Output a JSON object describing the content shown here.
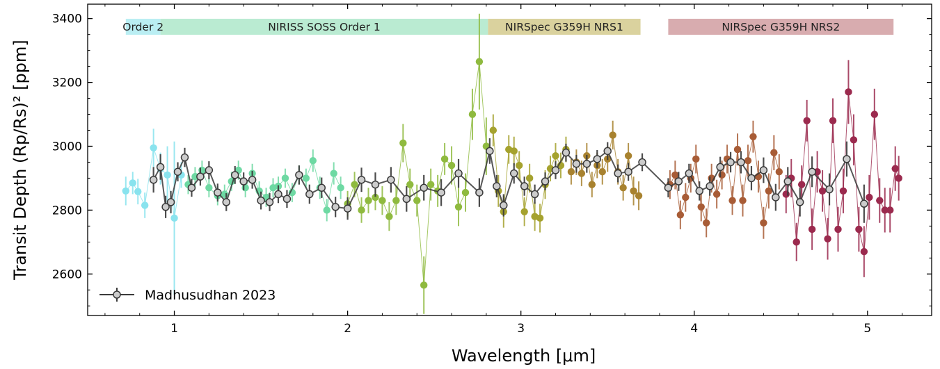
{
  "chart_data": {
    "type": "scatter",
    "title": "",
    "xlabel": "Wavelength [μm]",
    "ylabel": "Transit Depth (Rp/Rs)² [ppm]",
    "xlim": [
      0.5,
      5.37
    ],
    "ylim": [
      2470,
      3445
    ],
    "x_ticks": [
      1,
      2,
      3,
      4,
      5
    ],
    "x_tick_labels": [
      "1",
      "2",
      "3",
      "4",
      "5"
    ],
    "y_ticks": [
      2600,
      2800,
      3000,
      3200,
      3400
    ],
    "y_tick_labels": [
      "2600",
      "2800",
      "3000",
      "3200",
      "3400"
    ],
    "grid": false,
    "legend": {
      "position": "lower-left",
      "entries": [
        "Madhusudhan 2023"
      ]
    },
    "instrument_bands": [
      {
        "label": "Order 2",
        "x_start": 0.72,
        "x_end": 0.92,
        "color": "#b3ecf2"
      },
      {
        "label": "NIRISS SOSS Order 1",
        "x_start": 0.92,
        "x_end": 2.81,
        "color": "#b2e9cd"
      },
      {
        "label": "NIRSpec G359H NRS1",
        "x_start": 2.81,
        "x_end": 3.69,
        "color": "#d6cd94"
      },
      {
        "label": "NIRSpec G359H NRS2",
        "x_start": 3.85,
        "x_end": 5.15,
        "color": "#d4a3a6"
      }
    ],
    "series": [
      {
        "color": "#89e3ee",
        "points": [
          {
            "x": 0.72,
            "y": 2860,
            "err": 45
          },
          {
            "x": 0.76,
            "y": 2885,
            "err": 35
          },
          {
            "x": 0.79,
            "y": 2858,
            "err": 40
          },
          {
            "x": 0.83,
            "y": 2815,
            "err": 40
          },
          {
            "x": 0.88,
            "y": 2995,
            "err": 60
          },
          {
            "x": 0.92,
            "y": 2930,
            "err": 50
          },
          {
            "x": 0.96,
            "y": 2910,
            "err": 90
          },
          {
            "x": 1.0,
            "y": 2775,
            "err": 240
          },
          {
            "x": 1.04,
            "y": 2910,
            "err": 40
          }
        ]
      },
      {
        "color": "#6ed9a3",
        "points": [
          {
            "x": 1.08,
            "y": 2880,
            "err": 30
          },
          {
            "x": 1.12,
            "y": 2905,
            "err": 30
          },
          {
            "x": 1.16,
            "y": 2925,
            "err": 30
          },
          {
            "x": 1.2,
            "y": 2870,
            "err": 30
          },
          {
            "x": 1.25,
            "y": 2845,
            "err": 30
          },
          {
            "x": 1.29,
            "y": 2850,
            "err": 30
          },
          {
            "x": 1.33,
            "y": 2890,
            "err": 30
          },
          {
            "x": 1.37,
            "y": 2925,
            "err": 30
          },
          {
            "x": 1.41,
            "y": 2870,
            "err": 30
          },
          {
            "x": 1.45,
            "y": 2915,
            "err": 30
          },
          {
            "x": 1.49,
            "y": 2860,
            "err": 30
          },
          {
            "x": 1.53,
            "y": 2840,
            "err": 30
          },
          {
            "x": 1.57,
            "y": 2870,
            "err": 30
          },
          {
            "x": 1.6,
            "y": 2875,
            "err": 30
          },
          {
            "x": 1.64,
            "y": 2900,
            "err": 30
          },
          {
            "x": 1.68,
            "y": 2855,
            "err": 30
          },
          {
            "x": 1.72,
            "y": 2910,
            "err": 30
          },
          {
            "x": 1.76,
            "y": 2900,
            "err": 30
          },
          {
            "x": 1.8,
            "y": 2955,
            "err": 35
          },
          {
            "x": 1.84,
            "y": 2870,
            "err": 35
          },
          {
            "x": 1.88,
            "y": 2800,
            "err": 35
          },
          {
            "x": 1.92,
            "y": 2915,
            "err": 35
          },
          {
            "x": 1.96,
            "y": 2870,
            "err": 35
          }
        ]
      },
      {
        "color": "#8fba3f",
        "points": [
          {
            "x": 2.0,
            "y": 2820,
            "err": 40
          },
          {
            "x": 2.04,
            "y": 2880,
            "err": 40
          },
          {
            "x": 2.08,
            "y": 2800,
            "err": 40
          },
          {
            "x": 2.12,
            "y": 2830,
            "err": 40
          },
          {
            "x": 2.16,
            "y": 2840,
            "err": 40
          },
          {
            "x": 2.2,
            "y": 2830,
            "err": 45
          },
          {
            "x": 2.24,
            "y": 2780,
            "err": 45
          },
          {
            "x": 2.28,
            "y": 2830,
            "err": 45
          },
          {
            "x": 2.32,
            "y": 3010,
            "err": 60
          },
          {
            "x": 2.36,
            "y": 2880,
            "err": 50
          },
          {
            "x": 2.4,
            "y": 2830,
            "err": 50
          },
          {
            "x": 2.44,
            "y": 2565,
            "err": 90
          },
          {
            "x": 2.48,
            "y": 2880,
            "err": 50
          },
          {
            "x": 2.52,
            "y": 2860,
            "err": 50
          },
          {
            "x": 2.56,
            "y": 2960,
            "err": 50
          },
          {
            "x": 2.6,
            "y": 2940,
            "err": 60
          },
          {
            "x": 2.64,
            "y": 2810,
            "err": 60
          },
          {
            "x": 2.68,
            "y": 2855,
            "err": 60
          },
          {
            "x": 2.72,
            "y": 3100,
            "err": 80
          },
          {
            "x": 2.76,
            "y": 3265,
            "err": 150
          },
          {
            "x": 2.8,
            "y": 3000,
            "err": 90
          }
        ]
      },
      {
        "color": "#a5a22e",
        "points": [
          {
            "x": 2.84,
            "y": 3050,
            "err": 50
          },
          {
            "x": 2.87,
            "y": 2860,
            "err": 50
          },
          {
            "x": 2.9,
            "y": 2795,
            "err": 50
          },
          {
            "x": 2.93,
            "y": 2990,
            "err": 45
          },
          {
            "x": 2.96,
            "y": 2985,
            "err": 45
          },
          {
            "x": 2.99,
            "y": 2940,
            "err": 45
          },
          {
            "x": 3.02,
            "y": 2795,
            "err": 45
          },
          {
            "x": 3.05,
            "y": 2900,
            "err": 45
          },
          {
            "x": 3.08,
            "y": 2780,
            "err": 45
          },
          {
            "x": 3.11,
            "y": 2775,
            "err": 45
          },
          {
            "x": 3.14,
            "y": 2880,
            "err": 45
          },
          {
            "x": 3.17,
            "y": 2930,
            "err": 40
          },
          {
            "x": 3.2,
            "y": 2970,
            "err": 40
          },
          {
            "x": 3.23,
            "y": 2940,
            "err": 40
          },
          {
            "x": 3.26,
            "y": 2990,
            "err": 40
          }
        ]
      },
      {
        "color": "#a8822f",
        "points": [
          {
            "x": 3.29,
            "y": 2920,
            "err": 40
          },
          {
            "x": 3.32,
            "y": 2950,
            "err": 40
          },
          {
            "x": 3.35,
            "y": 2915,
            "err": 40
          },
          {
            "x": 3.38,
            "y": 2970,
            "err": 40
          },
          {
            "x": 3.41,
            "y": 2880,
            "err": 40
          },
          {
            "x": 3.44,
            "y": 2940,
            "err": 40
          },
          {
            "x": 3.47,
            "y": 2920,
            "err": 40
          },
          {
            "x": 3.5,
            "y": 2960,
            "err": 40
          },
          {
            "x": 3.53,
            "y": 3035,
            "err": 45
          },
          {
            "x": 3.56,
            "y": 2920,
            "err": 40
          },
          {
            "x": 3.59,
            "y": 2870,
            "err": 40
          },
          {
            "x": 3.62,
            "y": 2970,
            "err": 40
          },
          {
            "x": 3.65,
            "y": 2860,
            "err": 45
          },
          {
            "x": 3.68,
            "y": 2845,
            "err": 45
          }
        ]
      },
      {
        "color": "#a85c36",
        "points": [
          {
            "x": 3.86,
            "y": 2880,
            "err": 45
          },
          {
            "x": 3.89,
            "y": 2910,
            "err": 45
          },
          {
            "x": 3.92,
            "y": 2785,
            "err": 45
          },
          {
            "x": 3.95,
            "y": 2840,
            "err": 45
          },
          {
            "x": 3.98,
            "y": 2900,
            "err": 45
          },
          {
            "x": 4.01,
            "y": 2960,
            "err": 45
          },
          {
            "x": 4.04,
            "y": 2810,
            "err": 45
          },
          {
            "x": 4.07,
            "y": 2760,
            "err": 45
          },
          {
            "x": 4.1,
            "y": 2900,
            "err": 45
          },
          {
            "x": 4.13,
            "y": 2850,
            "err": 45
          },
          {
            "x": 4.16,
            "y": 2910,
            "err": 45
          },
          {
            "x": 4.19,
            "y": 2960,
            "err": 45
          },
          {
            "x": 4.22,
            "y": 2830,
            "err": 45
          },
          {
            "x": 4.25,
            "y": 2990,
            "err": 50
          },
          {
            "x": 4.28,
            "y": 2830,
            "err": 50
          },
          {
            "x": 4.31,
            "y": 2955,
            "err": 50
          },
          {
            "x": 4.34,
            "y": 3030,
            "err": 50
          },
          {
            "x": 4.37,
            "y": 2905,
            "err": 50
          },
          {
            "x": 4.4,
            "y": 2760,
            "err": 50
          },
          {
            "x": 4.43,
            "y": 2860,
            "err": 55
          },
          {
            "x": 4.46,
            "y": 2980,
            "err": 55
          },
          {
            "x": 4.49,
            "y": 2920,
            "err": 55
          }
        ]
      },
      {
        "color": "#9b2a4e",
        "points": [
          {
            "x": 4.53,
            "y": 2850,
            "err": 60
          },
          {
            "x": 4.56,
            "y": 2900,
            "err": 60
          },
          {
            "x": 4.59,
            "y": 2700,
            "err": 60
          },
          {
            "x": 4.62,
            "y": 2880,
            "err": 60
          },
          {
            "x": 4.65,
            "y": 3080,
            "err": 65
          },
          {
            "x": 4.68,
            "y": 2740,
            "err": 65
          },
          {
            "x": 4.71,
            "y": 2920,
            "err": 65
          },
          {
            "x": 4.74,
            "y": 2860,
            "err": 65
          },
          {
            "x": 4.77,
            "y": 2710,
            "err": 65
          },
          {
            "x": 4.8,
            "y": 3080,
            "err": 70
          },
          {
            "x": 4.83,
            "y": 2740,
            "err": 70
          },
          {
            "x": 4.86,
            "y": 2860,
            "err": 70
          },
          {
            "x": 4.89,
            "y": 3170,
            "err": 100
          },
          {
            "x": 4.92,
            "y": 3020,
            "err": 80
          },
          {
            "x": 4.95,
            "y": 2740,
            "err": 70
          },
          {
            "x": 4.98,
            "y": 2670,
            "err": 80
          },
          {
            "x": 5.01,
            "y": 2840,
            "err": 70
          },
          {
            "x": 5.04,
            "y": 3100,
            "err": 80
          },
          {
            "x": 5.07,
            "y": 2830,
            "err": 70
          },
          {
            "x": 5.1,
            "y": 2800,
            "err": 70
          },
          {
            "x": 5.13,
            "y": 2800,
            "err": 70
          },
          {
            "x": 5.16,
            "y": 2930,
            "err": 70
          },
          {
            "x": 5.18,
            "y": 2900,
            "err": 70
          }
        ]
      },
      {
        "name": "Madhusudhan 2023",
        "color": "#3a3a3a",
        "marker_fill": "#cccccc",
        "points": [
          {
            "x": 0.88,
            "y": 2895,
            "err": 40
          },
          {
            "x": 0.92,
            "y": 2935,
            "err": 40
          },
          {
            "x": 0.95,
            "y": 2810,
            "err": 35
          },
          {
            "x": 0.98,
            "y": 2825,
            "err": 35
          },
          {
            "x": 1.02,
            "y": 2920,
            "err": 30
          },
          {
            "x": 1.06,
            "y": 2965,
            "err": 30
          },
          {
            "x": 1.1,
            "y": 2870,
            "err": 28
          },
          {
            "x": 1.15,
            "y": 2905,
            "err": 28
          },
          {
            "x": 1.2,
            "y": 2925,
            "err": 28
          },
          {
            "x": 1.25,
            "y": 2855,
            "err": 28
          },
          {
            "x": 1.3,
            "y": 2825,
            "err": 28
          },
          {
            "x": 1.35,
            "y": 2910,
            "err": 28
          },
          {
            "x": 1.4,
            "y": 2890,
            "err": 28
          },
          {
            "x": 1.45,
            "y": 2895,
            "err": 28
          },
          {
            "x": 1.5,
            "y": 2830,
            "err": 28
          },
          {
            "x": 1.55,
            "y": 2825,
            "err": 28
          },
          {
            "x": 1.6,
            "y": 2850,
            "err": 28
          },
          {
            "x": 1.65,
            "y": 2835,
            "err": 28
          },
          {
            "x": 1.72,
            "y": 2910,
            "err": 30
          },
          {
            "x": 1.78,
            "y": 2850,
            "err": 30
          },
          {
            "x": 1.85,
            "y": 2870,
            "err": 32
          },
          {
            "x": 1.93,
            "y": 2810,
            "err": 32
          },
          {
            "x": 2.0,
            "y": 2805,
            "err": 35
          },
          {
            "x": 2.08,
            "y": 2895,
            "err": 38
          },
          {
            "x": 2.16,
            "y": 2880,
            "err": 38
          },
          {
            "x": 2.25,
            "y": 2895,
            "err": 40
          },
          {
            "x": 2.34,
            "y": 2835,
            "err": 40
          },
          {
            "x": 2.44,
            "y": 2870,
            "err": 40
          },
          {
            "x": 2.54,
            "y": 2855,
            "err": 42
          },
          {
            "x": 2.64,
            "y": 2915,
            "err": 45
          },
          {
            "x": 2.76,
            "y": 2855,
            "err": 45
          },
          {
            "x": 2.82,
            "y": 2985,
            "err": 40
          },
          {
            "x": 2.86,
            "y": 2875,
            "err": 35
          },
          {
            "x": 2.9,
            "y": 2815,
            "err": 35
          },
          {
            "x": 2.96,
            "y": 2915,
            "err": 32
          },
          {
            "x": 3.02,
            "y": 2875,
            "err": 30
          },
          {
            "x": 3.08,
            "y": 2850,
            "err": 30
          },
          {
            "x": 3.14,
            "y": 2890,
            "err": 28
          },
          {
            "x": 3.2,
            "y": 2925,
            "err": 28
          },
          {
            "x": 3.26,
            "y": 2980,
            "err": 28
          },
          {
            "x": 3.32,
            "y": 2945,
            "err": 28
          },
          {
            "x": 3.38,
            "y": 2945,
            "err": 28
          },
          {
            "x": 3.44,
            "y": 2960,
            "err": 28
          },
          {
            "x": 3.5,
            "y": 2985,
            "err": 28
          },
          {
            "x": 3.56,
            "y": 2915,
            "err": 28
          },
          {
            "x": 3.62,
            "y": 2920,
            "err": 28
          },
          {
            "x": 3.7,
            "y": 2950,
            "err": 28
          },
          {
            "x": 3.85,
            "y": 2870,
            "err": 30
          },
          {
            "x": 3.91,
            "y": 2890,
            "err": 30
          },
          {
            "x": 3.97,
            "y": 2915,
            "err": 30
          },
          {
            "x": 4.03,
            "y": 2860,
            "err": 30
          },
          {
            "x": 4.09,
            "y": 2875,
            "err": 30
          },
          {
            "x": 4.15,
            "y": 2935,
            "err": 32
          },
          {
            "x": 4.21,
            "y": 2950,
            "err": 32
          },
          {
            "x": 4.27,
            "y": 2950,
            "err": 35
          },
          {
            "x": 4.33,
            "y": 2900,
            "err": 38
          },
          {
            "x": 4.4,
            "y": 2925,
            "err": 40
          },
          {
            "x": 4.47,
            "y": 2840,
            "err": 42
          },
          {
            "x": 4.54,
            "y": 2890,
            "err": 45
          },
          {
            "x": 4.61,
            "y": 2825,
            "err": 45
          },
          {
            "x": 4.68,
            "y": 2920,
            "err": 48
          },
          {
            "x": 4.78,
            "y": 2865,
            "err": 50
          },
          {
            "x": 4.88,
            "y": 2960,
            "err": 55
          },
          {
            "x": 4.98,
            "y": 2820,
            "err": 60
          }
        ]
      }
    ]
  }
}
